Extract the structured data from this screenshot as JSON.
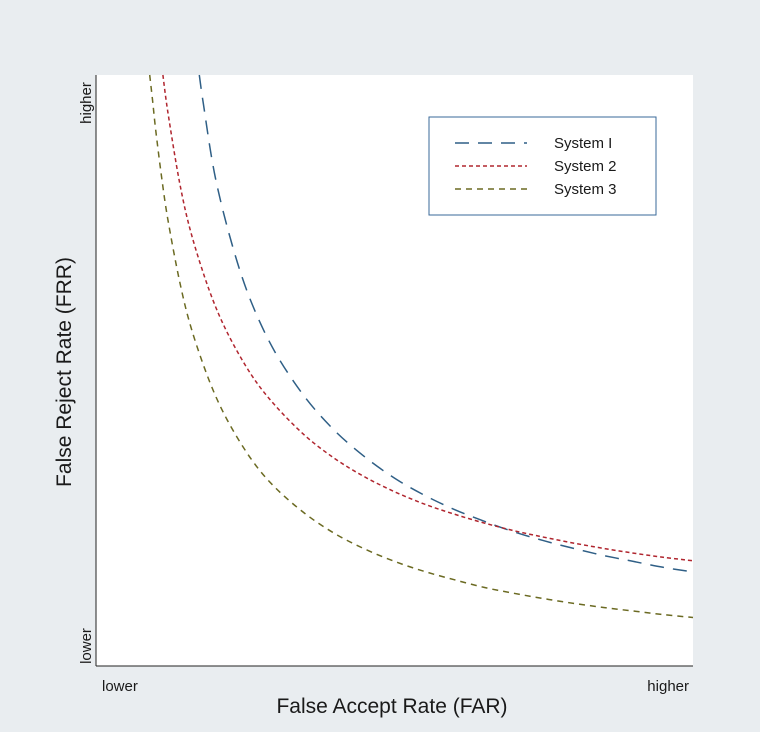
{
  "colors": {
    "background": "#e9edf0",
    "plot_background": "#ffffff",
    "legend_border": "#3a6a9a",
    "system1": "#2f5f86",
    "system2": "#b0262f",
    "system3": "#6b6a22"
  },
  "chart_data": {
    "type": "line",
    "xlabel": "False Accept Rate (FAR)",
    "ylabel": "False Reject Rate (FRR)",
    "x_tick_labels": [
      "lower",
      "higher"
    ],
    "y_tick_labels": [
      "lower",
      "higher"
    ],
    "xlim": [
      0,
      1
    ],
    "ylim": [
      0,
      1
    ],
    "grid": false,
    "legend_position": "top-right",
    "series": [
      {
        "name": "System I",
        "line_style": "long-dash",
        "color": "#2f5f86",
        "x": [
          0.173,
          0.18,
          0.2,
          0.23,
          0.26,
          0.3,
          0.35,
          0.4,
          0.45,
          0.5,
          0.55,
          0.6,
          0.65,
          0.7,
          0.75,
          0.8,
          0.85,
          0.9,
          0.95,
          1.0
        ],
        "y": [
          1.0,
          0.95,
          0.826,
          0.706,
          0.616,
          0.531,
          0.455,
          0.398,
          0.354,
          0.318,
          0.289,
          0.265,
          0.245,
          0.227,
          0.212,
          0.199,
          0.187,
          0.177,
          0.167,
          0.159
        ]
      },
      {
        "name": "System 2",
        "line_style": "short-dash",
        "color": "#b0262f",
        "x": [
          0.112,
          0.12,
          0.14,
          0.16,
          0.19,
          0.22,
          0.26,
          0.3,
          0.35,
          0.4,
          0.45,
          0.5,
          0.55,
          0.6,
          0.65,
          0.7,
          0.75,
          0.8,
          0.85,
          0.9,
          0.95,
          1.0
        ],
        "y": [
          1.0,
          0.94,
          0.818,
          0.73,
          0.635,
          0.564,
          0.493,
          0.441,
          0.39,
          0.351,
          0.32,
          0.295,
          0.274,
          0.257,
          0.242,
          0.229,
          0.218,
          0.208,
          0.199,
          0.191,
          0.184,
          0.178
        ]
      },
      {
        "name": "System 3",
        "line_style": "medium-dash",
        "color": "#6b6a22",
        "x": [
          0.09,
          0.095,
          0.1,
          0.11,
          0.12,
          0.14,
          0.16,
          0.19,
          0.22,
          0.26,
          0.3,
          0.35,
          0.4,
          0.45,
          0.5,
          0.55,
          0.6,
          0.65,
          0.7,
          0.75,
          0.8,
          0.85,
          0.9,
          0.95,
          1.0
        ],
        "y": [
          1.0,
          0.955,
          0.907,
          0.826,
          0.758,
          0.651,
          0.57,
          0.482,
          0.416,
          0.35,
          0.302,
          0.258,
          0.224,
          0.198,
          0.177,
          0.16,
          0.146,
          0.133,
          0.123,
          0.114,
          0.106,
          0.099,
          0.093,
          0.087,
          0.082
        ]
      }
    ]
  }
}
